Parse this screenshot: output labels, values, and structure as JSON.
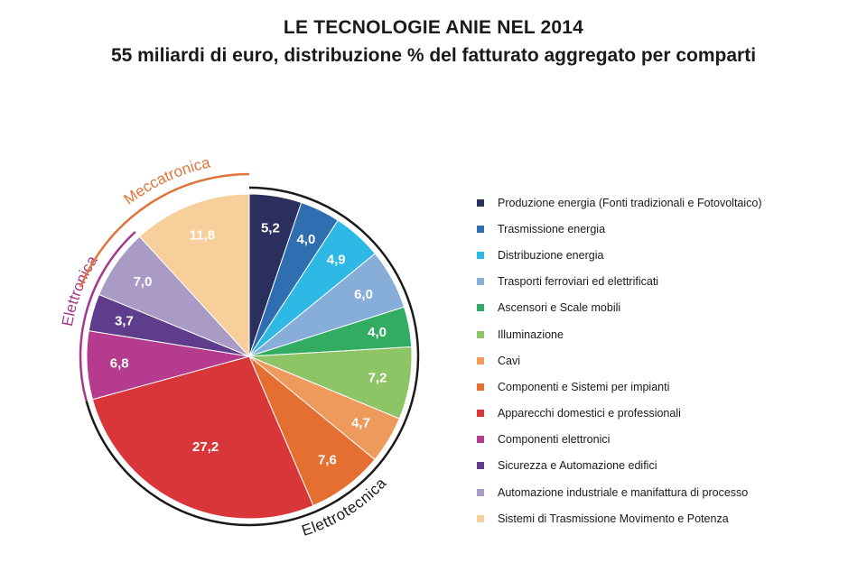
{
  "title": "LE TECNOLOGIE ANIE NEL 2014",
  "subtitle": "55 miliardi di euro, distribuzione % del fatturato aggregato per comparti",
  "chart_data": {
    "type": "pie",
    "title": "LE TECNOLOGIE ANIE NEL 2014",
    "subtitle": "55 miliardi di euro, distribuzione % del fatturato aggregato per comparti",
    "slices": [
      {
        "label": "Produzione energia (Fonti tradizionali e Fotovoltaico)",
        "value": 5.2,
        "display": "5,2",
        "color": "#2b2f5e"
      },
      {
        "label": "Trasmissione energia",
        "value": 4.0,
        "display": "4,0",
        "color": "#2e6eb1"
      },
      {
        "label": "Distribuzione energia",
        "value": 4.9,
        "display": "4,9",
        "color": "#2eb8e6"
      },
      {
        "label": "Trasporti ferroviari ed elettrificati",
        "value": 6.0,
        "display": "6,0",
        "color": "#86aed8"
      },
      {
        "label": "Ascensori e Scale mobili",
        "value": 4.0,
        "display": "4,0",
        "color": "#32ac62"
      },
      {
        "label": "Illuminazione",
        "value": 7.2,
        "display": "7,2",
        "color": "#8dc466"
      },
      {
        "label": "Cavi",
        "value": 4.7,
        "display": "4,7",
        "color": "#ee9a5c"
      },
      {
        "label": "Componenti e Sistemi per impianti",
        "value": 7.6,
        "display": "7,6",
        "color": "#e56f31"
      },
      {
        "label": "Apparecchi domestici e professionali",
        "value": 27.2,
        "display": "27,2",
        "color": "#d9363a"
      },
      {
        "label": "Componenti elettronici",
        "value": 6.8,
        "display": "6,8",
        "color": "#b53b8f"
      },
      {
        "label": "Sicurezza e Automazione edifici",
        "value": 3.7,
        "display": "3,7",
        "color": "#5d3d8c"
      },
      {
        "label": "Automazione industriale e manifattura di processo",
        "value": 7.0,
        "display": "7,0",
        "color": "#a99ac6"
      },
      {
        "label": "Sistemi di Trasmissione Movimento e Potenza",
        "value": 11.8,
        "display": "11,8",
        "color": "#f6cf9a"
      }
    ],
    "groups": [
      {
        "name": "Elettrotecnica",
        "from_slice": 0,
        "to_slice": 8,
        "color": "#1a1a1a"
      },
      {
        "name": "Elettronica",
        "from_slice": 9,
        "to_slice": 11,
        "color": "#a4378a"
      },
      {
        "name": "Meccatronica",
        "from_slice": 11,
        "to_slice": 12,
        "color": "#e0743a"
      }
    ],
    "legend_position": "right"
  }
}
